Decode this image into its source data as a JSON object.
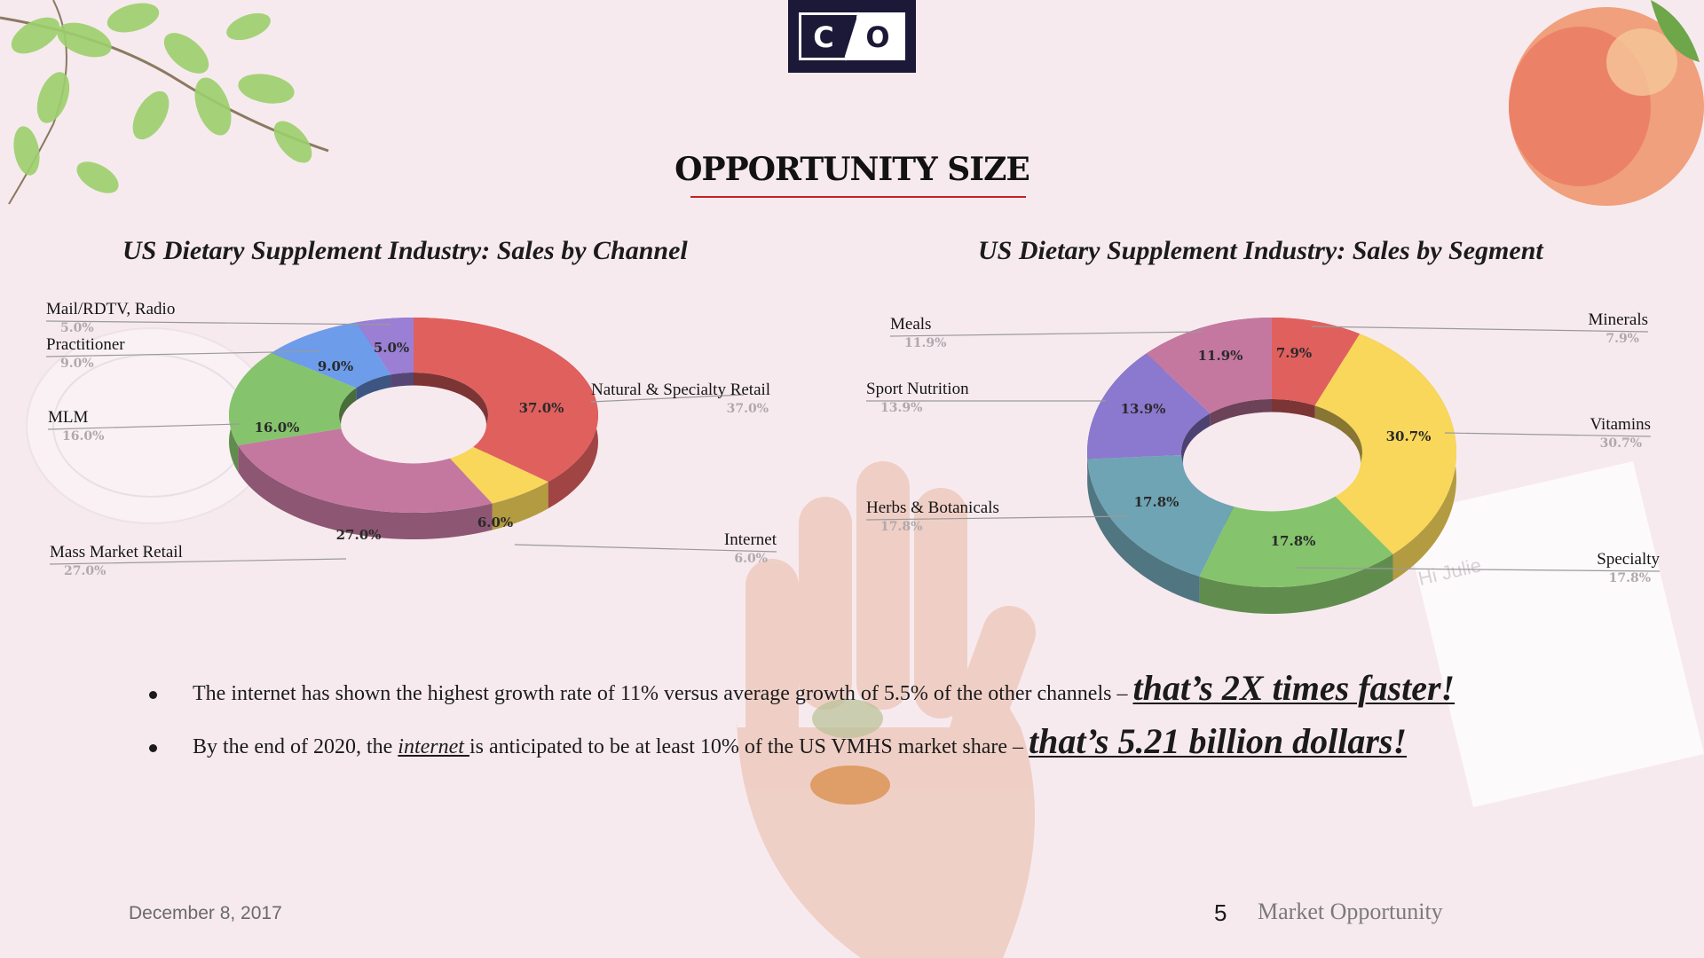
{
  "logo": {
    "left_letter": "C",
    "right_letter": "O"
  },
  "page_title": "OPPORTUNITY SIZE",
  "chart_data": [
    {
      "type": "pie",
      "title": "US Dietary Supplement Industry: Sales by Channel",
      "style": "3d-donut",
      "slices": [
        {
          "label": "Natural & Specialty Retail",
          "value": 37.0,
          "display": "37.0%",
          "color": "#e0605e"
        },
        {
          "label": "Internet",
          "value": 6.0,
          "display": "6.0%",
          "color": "#f8d75a"
        },
        {
          "label": "Mass Market Retail",
          "value": 27.0,
          "display": "27.0%",
          "color": "#c478a0"
        },
        {
          "label": "MLM",
          "value": 16.0,
          "display": "16.0%",
          "color": "#85c46c"
        },
        {
          "label": "Practitioner",
          "value": 9.0,
          "display": "9.0%",
          "color": "#6d9ceb"
        },
        {
          "label": "Mail/RDTV, Radio",
          "value": 5.0,
          "display": "5.0%",
          "color": "#9a7fd4"
        }
      ]
    },
    {
      "type": "pie",
      "title": "US Dietary Supplement Industry: Sales by Segment",
      "style": "3d-donut",
      "slices": [
        {
          "label": "Minerals",
          "value": 7.9,
          "display": "7.9%",
          "color": "#e0605e"
        },
        {
          "label": "Vitamins",
          "value": 30.7,
          "display": "30.7%",
          "color": "#f8d75a"
        },
        {
          "label": "Specialty",
          "value": 17.8,
          "display": "17.8%",
          "color": "#85c46c"
        },
        {
          "label": "Herbs & Botanicals",
          "value": 17.8,
          "display": "17.8%",
          "color": "#6fa4b4"
        },
        {
          "label": "Sport Nutrition",
          "value": 13.9,
          "display": "13.9%",
          "color": "#8b78cf"
        },
        {
          "label": "Meals",
          "value": 11.9,
          "display": "11.9%",
          "color": "#c478a0"
        }
      ]
    }
  ],
  "bullets": [
    {
      "text_before": "The internet has shown the highest growth rate of 11% versus average growth of 5.5% of the other channels – ",
      "link_text": "",
      "text_after": "",
      "emphasis": "that’s 2X times faster!"
    },
    {
      "text_before": "By the end of 2020, the ",
      "link_text": "internet ",
      "text_after": "is anticipated to be at least 10% of the US VMHS market share – ",
      "emphasis": "that’s 5.21 billion dollars!"
    }
  ],
  "footer": {
    "date": "December 8, 2017",
    "page_number": "5",
    "section": "Market Opportunity"
  }
}
